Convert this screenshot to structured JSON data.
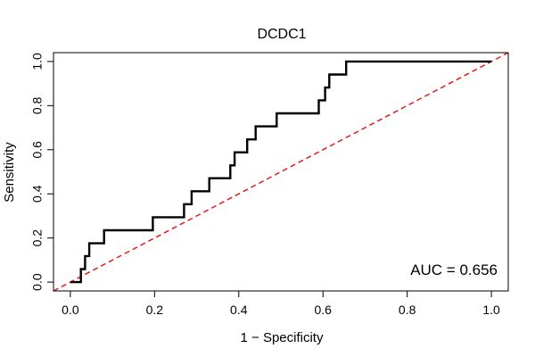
{
  "chart_data": {
    "type": "line",
    "title": "DCDC1",
    "xlabel": "1 − Specificity",
    "ylabel": "Sensitivity",
    "xlim": [
      -0.04,
      1.04
    ],
    "ylim": [
      -0.04,
      1.04
    ],
    "x_ticks": [
      0.0,
      0.2,
      0.4,
      0.6,
      0.8,
      1.0
    ],
    "x_tick_labels": [
      "0.0",
      "0.2",
      "0.4",
      "0.6",
      "0.8",
      "1.0"
    ],
    "y_ticks": [
      0.0,
      0.2,
      0.4,
      0.6,
      0.8,
      1.0
    ],
    "y_tick_labels": [
      "0.0",
      "0.2",
      "0.4",
      "0.6",
      "0.8",
      "1.0"
    ],
    "annotation": "AUC = 0.656",
    "series": [
      {
        "name": "ROC curve",
        "color": "#000000",
        "style": "solid",
        "x": [
          0.0,
          0.025,
          0.025,
          0.035,
          0.035,
          0.045,
          0.045,
          0.055,
          0.055,
          0.08,
          0.08,
          0.196,
          0.196,
          0.27,
          0.27,
          0.288,
          0.288,
          0.33,
          0.33,
          0.38,
          0.38,
          0.39,
          0.39,
          0.41,
          0.41,
          0.42,
          0.42,
          0.44,
          0.44,
          0.49,
          0.49,
          0.59,
          0.59,
          0.605,
          0.605,
          0.615,
          0.615,
          0.655,
          0.655,
          1.0
        ],
        "y": [
          0.0,
          0.0,
          0.059,
          0.059,
          0.118,
          0.118,
          0.176,
          0.176,
          0.176,
          0.176,
          0.235,
          0.235,
          0.294,
          0.294,
          0.353,
          0.353,
          0.412,
          0.412,
          0.471,
          0.471,
          0.529,
          0.529,
          0.588,
          0.588,
          0.588,
          0.588,
          0.647,
          0.647,
          0.706,
          0.706,
          0.765,
          0.765,
          0.824,
          0.824,
          0.882,
          0.882,
          0.941,
          0.941,
          1.0,
          1.0
        ]
      },
      {
        "name": "Reference line",
        "color": "#e31a1c",
        "style": "dashed",
        "x": [
          -0.04,
          1.04
        ],
        "y": [
          -0.04,
          1.04
        ]
      }
    ]
  }
}
